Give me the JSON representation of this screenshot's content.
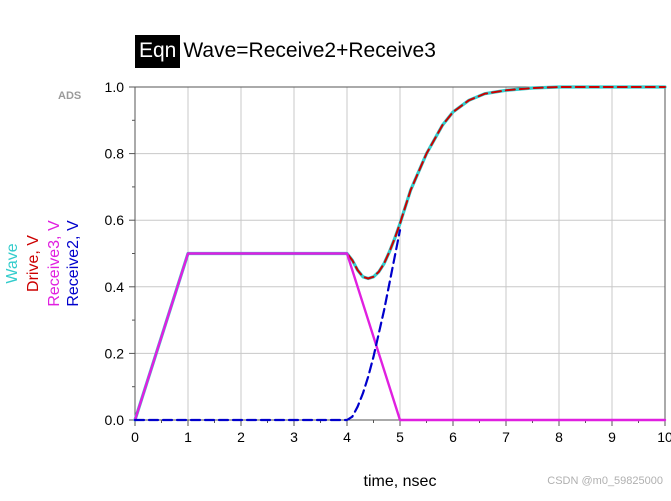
{
  "title": {
    "badge": "Eqn",
    "equation": "Wave=Receive2+Receive3"
  },
  "brand_mark": "ADS",
  "watermark": "CSDN @m0_59825000",
  "chart_data": {
    "type": "line",
    "xlabel": "time, nsec",
    "xlim": [
      0,
      10
    ],
    "ylim": [
      0,
      1.0
    ],
    "x_ticks": [
      "0",
      "1",
      "2",
      "3",
      "4",
      "5",
      "6",
      "7",
      "8",
      "9",
      "10"
    ],
    "y_ticks": [
      "0.0",
      "0.2",
      "0.4",
      "0.6",
      "0.8",
      "1.0"
    ],
    "grid": true,
    "legend_placement": "left, rotated",
    "series": [
      {
        "name": "Wave",
        "color": "#33cccc",
        "style": "solid",
        "x": [
          0,
          1,
          4,
          4.1,
          4.2,
          4.3,
          4.4,
          4.5,
          4.6,
          4.7,
          4.8,
          4.9,
          5,
          5.2,
          5.5,
          5.8,
          6,
          6.3,
          6.6,
          7,
          7.5,
          8,
          9,
          10
        ],
        "y": [
          0,
          0.5,
          0.5,
          0.48,
          0.45,
          0.43,
          0.425,
          0.43,
          0.445,
          0.47,
          0.505,
          0.545,
          0.59,
          0.69,
          0.8,
          0.885,
          0.925,
          0.96,
          0.98,
          0.99,
          0.997,
          1.0,
          1.0,
          1.0
        ]
      },
      {
        "name": "Drive, V",
        "color": "#cc0000",
        "style": "dashed",
        "x": [
          0,
          1,
          4,
          4.1,
          4.2,
          4.3,
          4.4,
          4.5,
          4.6,
          4.7,
          4.8,
          4.9,
          5,
          5.2,
          5.5,
          5.8,
          6,
          6.3,
          6.6,
          7,
          7.5,
          8,
          9,
          10
        ],
        "y": [
          0,
          0.5,
          0.5,
          0.48,
          0.45,
          0.43,
          0.425,
          0.43,
          0.445,
          0.47,
          0.505,
          0.545,
          0.59,
          0.69,
          0.8,
          0.885,
          0.925,
          0.96,
          0.98,
          0.99,
          0.997,
          1.0,
          1.0,
          1.0
        ]
      },
      {
        "name": "Receive3, V",
        "color": "#e020e0",
        "style": "solid",
        "x": [
          0,
          1,
          4,
          5,
          10
        ],
        "y": [
          0,
          0.5,
          0.5,
          0,
          0
        ]
      },
      {
        "name": "Receive2, V",
        "color": "#0000cc",
        "style": "dashed",
        "x": [
          0,
          4,
          4.1,
          4.2,
          4.3,
          4.4,
          4.5,
          4.6,
          4.7,
          4.8,
          4.9,
          5
        ],
        "y": [
          0,
          0,
          0.01,
          0.04,
          0.08,
          0.13,
          0.19,
          0.26,
          0.33,
          0.41,
          0.49,
          0.57
        ]
      }
    ]
  }
}
